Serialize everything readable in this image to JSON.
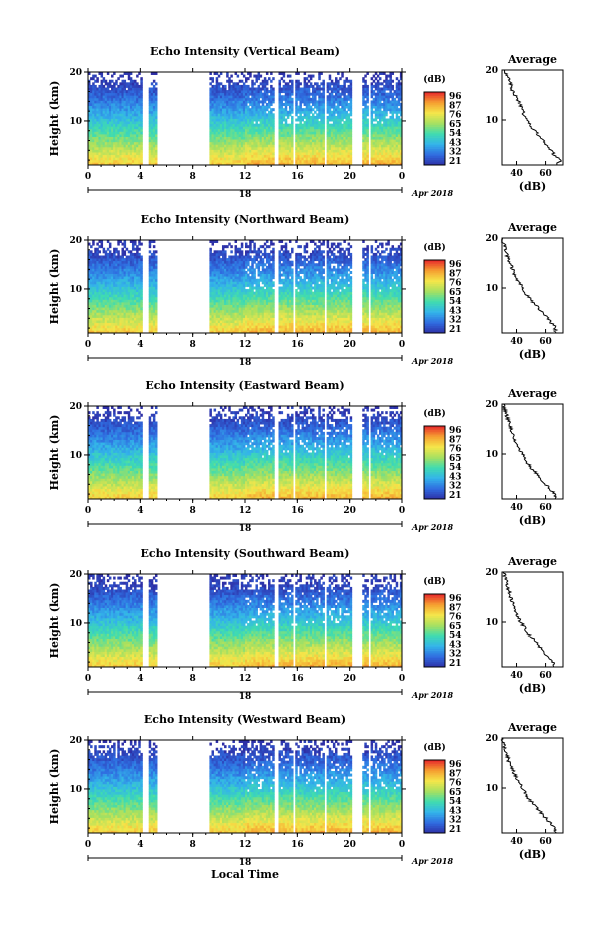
{
  "chart_data": {
    "type": "heatmap",
    "shared": {
      "x_ticks": [
        "0",
        "4",
        "8",
        "12",
        "16",
        "20",
        "0"
      ],
      "x_range_hours": [
        0,
        24
      ],
      "date_hour_label": "18",
      "date_label": "Apr 2018",
      "y_ticks": [
        "20",
        "10"
      ],
      "y_range_km": [
        1,
        20
      ],
      "ylabel": "Height (km)",
      "colorbar_unit": "(dB)",
      "colorbar_ticks": [
        "96",
        "87",
        "76",
        "65",
        "54",
        "43",
        "32",
        "21"
      ],
      "colorbar_range_db": [
        21,
        96
      ],
      "profile_title": "Average",
      "profile_xlabel": "(dB)",
      "profile_x_ticks": [
        "40",
        "60"
      ],
      "profile_x_range_db": [
        30,
        72
      ],
      "profile_y_ticks": [
        "20",
        "10"
      ],
      "data_gaps_hours": [
        [
          4.1,
          4.6
        ],
        [
          5.3,
          9.3
        ],
        [
          14.3,
          14.6
        ],
        [
          15.7,
          15.9
        ],
        [
          18.1,
          18.3
        ],
        [
          20.2,
          21.0
        ],
        [
          21.4,
          21.6
        ]
      ],
      "colors": [
        "#2e2fa6",
        "#2f6ce0",
        "#33b3ea",
        "#3fdcb0",
        "#a6e060",
        "#f5e64a",
        "#f5a030",
        "#e8282a"
      ]
    },
    "panels": [
      {
        "title": "Echo Intensity (Vertical Beam)",
        "profile_db": [
          [
            1,
            68
          ],
          [
            2,
            70
          ],
          [
            3,
            66
          ],
          [
            4,
            64
          ],
          [
            5,
            61
          ],
          [
            6,
            58
          ],
          [
            7,
            55
          ],
          [
            8,
            52
          ],
          [
            9,
            49
          ],
          [
            10,
            47
          ],
          [
            11,
            45
          ],
          [
            12,
            44
          ],
          [
            13,
            43
          ],
          [
            14,
            41
          ],
          [
            15,
            39
          ],
          [
            16,
            37
          ],
          [
            17,
            36
          ],
          [
            18,
            35
          ],
          [
            19,
            33
          ],
          [
            20,
            32
          ]
        ]
      },
      {
        "title": "Echo Intensity (Northward Beam)",
        "profile_db": [
          [
            1,
            66
          ],
          [
            2,
            67
          ],
          [
            3,
            64
          ],
          [
            4,
            61
          ],
          [
            5,
            58
          ],
          [
            6,
            55
          ],
          [
            7,
            52
          ],
          [
            8,
            49
          ],
          [
            9,
            46
          ],
          [
            10,
            44
          ],
          [
            11,
            42
          ],
          [
            12,
            40
          ],
          [
            13,
            38
          ],
          [
            14,
            37
          ],
          [
            15,
            35
          ],
          [
            16,
            34
          ],
          [
            17,
            33
          ],
          [
            18,
            32
          ],
          [
            19,
            31
          ],
          [
            20,
            30
          ]
        ]
      },
      {
        "title": "Echo Intensity (Eastward Beam)",
        "profile_db": [
          [
            1,
            67
          ],
          [
            2,
            66
          ],
          [
            3,
            63
          ],
          [
            4,
            60
          ],
          [
            5,
            57
          ],
          [
            6,
            54
          ],
          [
            7,
            51
          ],
          [
            8,
            48
          ],
          [
            9,
            46
          ],
          [
            10,
            44
          ],
          [
            11,
            42
          ],
          [
            12,
            40
          ],
          [
            13,
            38
          ],
          [
            14,
            37
          ],
          [
            15,
            36
          ],
          [
            16,
            35
          ],
          [
            17,
            34
          ],
          [
            18,
            33
          ],
          [
            19,
            32
          ],
          [
            20,
            31
          ]
        ]
      },
      {
        "title": "Echo Intensity (Southward Beam)",
        "profile_db": [
          [
            1,
            66
          ],
          [
            2,
            65
          ],
          [
            3,
            62
          ],
          [
            4,
            59
          ],
          [
            5,
            56
          ],
          [
            6,
            53
          ],
          [
            7,
            50
          ],
          [
            8,
            47
          ],
          [
            9,
            45
          ],
          [
            10,
            43
          ],
          [
            11,
            41
          ],
          [
            12,
            39
          ],
          [
            13,
            38
          ],
          [
            14,
            37
          ],
          [
            15,
            36
          ],
          [
            16,
            35
          ],
          [
            17,
            34
          ],
          [
            18,
            33
          ],
          [
            19,
            32
          ],
          [
            20,
            31
          ]
        ]
      },
      {
        "title": "Echo Intensity (Westward Beam)",
        "profile_db": [
          [
            1,
            67
          ],
          [
            2,
            66
          ],
          [
            3,
            63
          ],
          [
            4,
            60
          ],
          [
            5,
            57
          ],
          [
            6,
            54
          ],
          [
            7,
            51
          ],
          [
            8,
            48
          ],
          [
            9,
            46
          ],
          [
            10,
            44
          ],
          [
            11,
            42
          ],
          [
            12,
            40
          ],
          [
            13,
            38
          ],
          [
            14,
            37
          ],
          [
            15,
            35
          ],
          [
            16,
            34
          ],
          [
            17,
            33
          ],
          [
            18,
            32
          ],
          [
            19,
            31
          ],
          [
            20,
            30
          ]
        ]
      }
    ],
    "xlabel": "Local Time"
  }
}
